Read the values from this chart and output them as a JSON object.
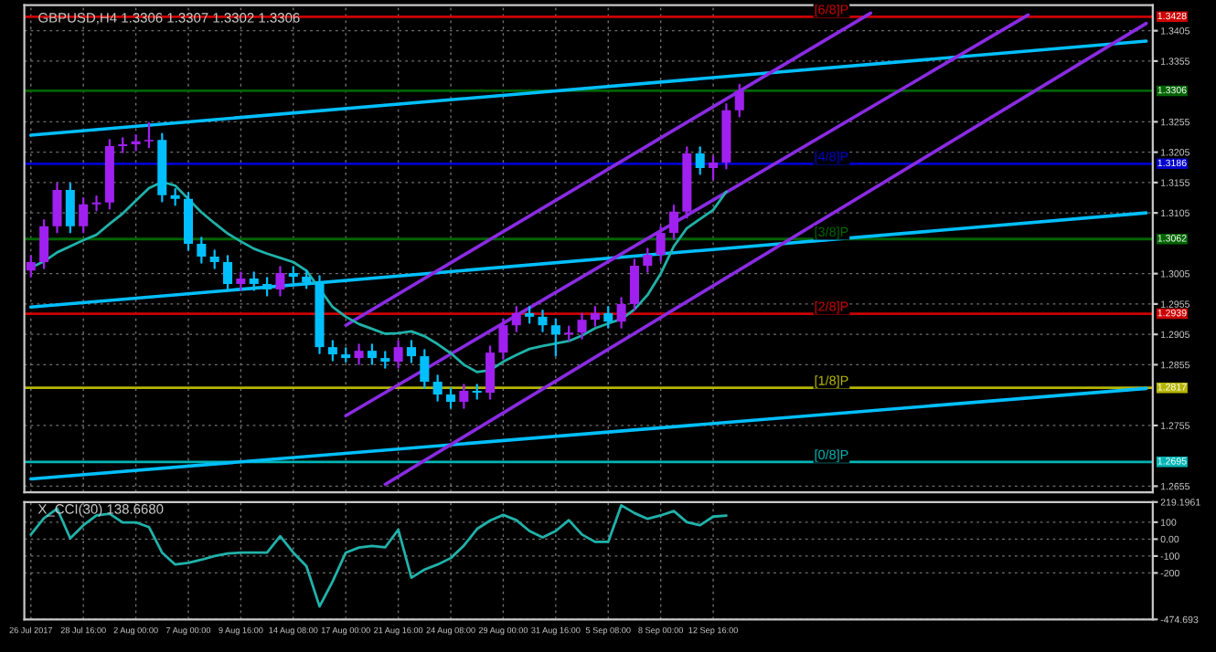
{
  "chart_data": [
    {
      "type": "candlestick",
      "title": "GBPUSD,H4 1.3306 1.3307 1.3302 1.3306",
      "categories": [
        null,
        null,
        null,
        null,
        null,
        null,
        null,
        null,
        null,
        null,
        null,
        null,
        null,
        null,
        null,
        null,
        null,
        null,
        null,
        null,
        null,
        null,
        null,
        null,
        null,
        null,
        null,
        null,
        null,
        null,
        null,
        null,
        null,
        null,
        null,
        null,
        null,
        null,
        null,
        null,
        null,
        null,
        null,
        null,
        null,
        null,
        null,
        null,
        null,
        null,
        null,
        null,
        null,
        null,
        null,
        null,
        null,
        null,
        null,
        null,
        null,
        null,
        null,
        null,
        null,
        null,
        null,
        null,
        null,
        null,
        null,
        null,
        null,
        null,
        null,
        null,
        null,
        null,
        null,
        null,
        null,
        null,
        null,
        null,
        null,
        null
      ],
      "ohlc": [
        [
          1.301,
          1.3034,
          1.3,
          1.3024
        ],
        [
          1.3024,
          1.3093,
          1.3014,
          1.3083
        ],
        [
          1.3083,
          1.3153,
          1.3073,
          1.3143
        ],
        [
          1.3143,
          1.3153,
          1.3073,
          1.3083
        ],
        [
          1.3083,
          1.3129,
          1.3073,
          1.3119
        ],
        [
          1.3119,
          1.3132,
          1.3109,
          1.3122
        ],
        [
          1.3122,
          1.3225,
          1.3112,
          1.3215
        ],
        [
          1.3215,
          1.3228,
          1.3205,
          1.3218
        ],
        [
          1.3218,
          1.3233,
          1.3208,
          1.3223
        ],
        [
          1.3223,
          1.3253,
          1.3213,
          1.3225
        ],
        [
          1.3225,
          1.3235,
          1.3124,
          1.3134
        ],
        [
          1.3134,
          1.3144,
          1.3118,
          1.3128
        ],
        [
          1.3128,
          1.3138,
          1.3044,
          1.3054
        ],
        [
          1.3054,
          1.3064,
          1.3023,
          1.3033
        ],
        [
          1.3033,
          1.3043,
          1.3014,
          1.3024
        ],
        [
          1.3024,
          1.3034,
          1.2978,
          1.2988
        ],
        [
          1.2988,
          1.3007,
          1.2978,
          1.2997
        ],
        [
          1.2997,
          1.3007,
          1.2978,
          1.2988
        ],
        [
          1.2988,
          1.2998,
          1.2969,
          1.2979
        ],
        [
          1.2979,
          1.3016,
          1.2969,
          1.3006
        ],
        [
          1.3006,
          1.3016,
          1.299,
          1.3
        ],
        [
          1.3,
          1.301,
          1.2981,
          1.2991
        ],
        [
          1.2991,
          1.3001,
          1.2874,
          1.2884
        ],
        [
          1.2884,
          1.2894,
          1.2862,
          1.2872
        ],
        [
          1.2872,
          1.2882,
          1.286,
          1.2866
        ],
        [
          1.2866,
          1.2888,
          1.2856,
          1.2878
        ],
        [
          1.2878,
          1.2888,
          1.2856,
          1.2866
        ],
        [
          1.2866,
          1.2876,
          1.285,
          1.286
        ],
        [
          1.286,
          1.2894,
          1.285,
          1.2884
        ],
        [
          1.2884,
          1.2894,
          1.2859,
          1.2869
        ],
        [
          1.2869,
          1.2879,
          1.2817,
          1.2827
        ],
        [
          1.2827,
          1.2837,
          1.2796,
          1.2806
        ],
        [
          1.2806,
          1.2816,
          1.2784,
          1.2794
        ],
        [
          1.2794,
          1.2822,
          1.2784,
          1.2812
        ],
        [
          1.2812,
          1.2822,
          1.2799,
          1.2809
        ],
        [
          1.2809,
          1.2885,
          1.2799,
          1.2875
        ],
        [
          1.2875,
          1.293,
          1.2865,
          1.292
        ],
        [
          1.292,
          1.295,
          1.291,
          1.294
        ],
        [
          1.294,
          1.295,
          1.2924,
          1.2934
        ],
        [
          1.2934,
          1.2944,
          1.291,
          1.292
        ],
        [
          1.292,
          1.293,
          1.287,
          1.2905
        ],
        [
          1.2905,
          1.2918,
          1.2895,
          1.2908
        ],
        [
          1.2908,
          1.2939,
          1.2898,
          1.2929
        ],
        [
          1.2929,
          1.295,
          1.2919,
          1.294
        ],
        [
          1.294,
          1.295,
          1.2916,
          1.2926
        ],
        [
          1.2926,
          1.2965,
          1.2916,
          1.2955
        ],
        [
          1.2955,
          1.3028,
          1.2945,
          1.3018
        ],
        [
          1.3018,
          1.3046,
          1.3008,
          1.3036
        ],
        [
          1.3036,
          1.3082,
          1.3026,
          1.3072
        ],
        [
          1.3072,
          1.3117,
          1.3062,
          1.3107
        ],
        [
          1.3107,
          1.3213,
          1.3097,
          1.3203
        ],
        [
          1.3203,
          1.3213,
          1.3169,
          1.3179
        ],
        [
          1.3179,
          1.3198,
          1.316,
          1.3188
        ],
        [
          1.3188,
          1.3284,
          1.3178,
          1.3274
        ],
        [
          1.3274,
          1.3316,
          1.3264,
          1.3306
        ],
        null,
        null,
        null,
        null,
        null,
        null,
        null,
        null,
        null,
        null,
        null,
        null,
        null,
        null,
        null,
        null,
        null,
        null,
        null,
        null,
        null,
        null,
        null,
        null,
        null,
        null,
        null,
        null,
        null,
        null,
        null
      ],
      "colors": [
        "#a020f0",
        "#a020f0",
        "#a020f0",
        "#00bfff",
        "#a020f0",
        "#a020f0",
        "#a020f0",
        "#a020f0",
        "#a020f0",
        "#a020f0",
        "#00bfff",
        "#00bfff",
        "#00bfff",
        "#00bfff",
        "#00bfff",
        "#00bfff",
        "#a020f0",
        "#00bfff",
        "#00bfff",
        "#a020f0",
        "#00bfff",
        "#00bfff",
        "#00bfff",
        "#00bfff",
        "#00bfff",
        "#a020f0",
        "#00bfff",
        "#00bfff",
        "#a020f0",
        "#00bfff",
        "#00bfff",
        "#00bfff",
        "#00bfff",
        "#a020f0",
        "#00bfff",
        "#a020f0",
        "#a020f0",
        "#a020f0",
        "#00bfff",
        "#00bfff",
        "#00bfff",
        "#a020f0",
        "#a020f0",
        "#a020f0",
        "#00bfff",
        "#a020f0",
        "#a020f0",
        "#a020f0",
        "#a020f0",
        "#a020f0",
        "#a020f0",
        "#00bfff",
        "#a020f0",
        "#a020f0",
        "#a020f0",
        null,
        null,
        null,
        null,
        null,
        null,
        null,
        null,
        null,
        null,
        null,
        null,
        null,
        null,
        null,
        null,
        null,
        null,
        null,
        null,
        null,
        null,
        null,
        null,
        null,
        null,
        null,
        null,
        null,
        null,
        null
      ],
      "series": [
        {
          "type": "line",
          "color": "#00bfff",
          "values": [
            1.3233,
            null,
            null,
            null,
            null,
            null,
            null,
            null,
            null,
            null,
            null,
            null,
            null,
            null,
            null,
            null,
            null,
            null,
            null,
            null,
            null,
            null,
            null,
            null,
            null,
            null,
            null,
            null,
            null,
            null,
            null,
            null,
            null,
            null,
            null,
            null,
            null,
            null,
            null,
            null,
            null,
            null,
            null,
            null,
            null,
            null,
            null,
            null,
            null,
            null,
            null,
            null,
            null,
            null,
            null,
            null,
            null,
            null,
            null,
            null,
            null,
            null,
            null,
            null,
            null,
            null,
            null,
            null,
            null,
            null,
            null,
            null,
            null,
            null,
            null,
            null,
            null,
            null,
            null,
            null,
            null,
            null,
            null,
            null,
            null,
            1.3388
          ]
        },
        {
          "type": "line",
          "color": "#00bfff",
          "values": [
            1.295,
            null,
            null,
            null,
            null,
            null,
            null,
            null,
            null,
            null,
            null,
            null,
            null,
            null,
            null,
            null,
            null,
            null,
            null,
            null,
            null,
            null,
            null,
            null,
            null,
            null,
            null,
            null,
            null,
            null,
            null,
            null,
            null,
            null,
            null,
            null,
            null,
            null,
            null,
            null,
            null,
            null,
            null,
            null,
            null,
            null,
            null,
            null,
            null,
            null,
            null,
            null,
            null,
            null,
            null,
            null,
            null,
            null,
            null,
            null,
            null,
            null,
            null,
            null,
            null,
            null,
            null,
            null,
            null,
            null,
            null,
            null,
            null,
            null,
            null,
            null,
            null,
            null,
            null,
            null,
            null,
            null,
            null,
            null,
            null,
            1.3105
          ]
        },
        {
          "type": "line",
          "color": "#00bfff",
          "values": [
            1.2667,
            null,
            null,
            null,
            null,
            null,
            null,
            null,
            null,
            null,
            null,
            null,
            null,
            null,
            null,
            null,
            null,
            null,
            null,
            null,
            null,
            null,
            null,
            null,
            null,
            null,
            null,
            null,
            null,
            null,
            null,
            null,
            null,
            null,
            null,
            null,
            null,
            null,
            null,
            null,
            null,
            null,
            null,
            null,
            null,
            null,
            null,
            null,
            null,
            null,
            null,
            null,
            null,
            null,
            null,
            null,
            null,
            null,
            null,
            null,
            null,
            null,
            null,
            null,
            null,
            null,
            null,
            null,
            null,
            null,
            null,
            null,
            null,
            null,
            null,
            null,
            null,
            null,
            null,
            null,
            null,
            null,
            null,
            null,
            null,
            1.2816
          ]
        },
        {
          "type": "line",
          "color": "#8a2be2",
          "values": [
            null,
            null,
            null,
            null,
            null,
            null,
            null,
            null,
            null,
            null,
            null,
            null,
            null,
            null,
            null,
            null,
            null,
            null,
            null,
            null,
            null,
            null,
            null,
            null,
            1.292,
            null,
            null,
            null,
            null,
            null,
            null,
            null,
            null,
            null,
            null,
            null,
            null,
            null,
            null,
            null,
            null,
            null,
            null,
            null,
            null,
            null,
            null,
            null,
            null,
            null,
            null,
            null,
            null,
            null,
            null,
            null,
            null,
            null,
            null,
            null,
            null,
            null,
            null,
            null,
            1.3434,
            null,
            null,
            null,
            null,
            null,
            null,
            null,
            null,
            null,
            null,
            null,
            null,
            null,
            null,
            null,
            null,
            null,
            null,
            null,
            null,
            null
          ]
        },
        {
          "type": "line",
          "color": "#8a2be2",
          "values": [
            null,
            null,
            null,
            null,
            null,
            null,
            null,
            null,
            null,
            null,
            null,
            null,
            null,
            null,
            null,
            null,
            null,
            null,
            null,
            null,
            null,
            null,
            null,
            null,
            1.2771,
            null,
            null,
            null,
            null,
            null,
            null,
            null,
            null,
            null,
            null,
            null,
            null,
            null,
            null,
            null,
            null,
            null,
            null,
            null,
            null,
            null,
            null,
            null,
            null,
            null,
            null,
            null,
            null,
            null,
            null,
            null,
            null,
            null,
            null,
            null,
            null,
            null,
            null,
            null,
            null,
            null,
            null,
            null,
            null,
            null,
            null,
            null,
            null,
            null,
            null,
            null,
            1.3431,
            null,
            null,
            null,
            null,
            null,
            null,
            null,
            null,
            null
          ]
        },
        {
          "type": "line",
          "color": "#8a2be2",
          "values": [
            null,
            null,
            null,
            null,
            null,
            null,
            null,
            null,
            null,
            null,
            null,
            null,
            null,
            null,
            null,
            null,
            null,
            null,
            null,
            null,
            null,
            null,
            null,
            null,
            null,
            null,
            null,
            1.2658,
            null,
            null,
            null,
            null,
            null,
            null,
            null,
            null,
            null,
            null,
            null,
            null,
            null,
            null,
            null,
            null,
            null,
            null,
            null,
            null,
            null,
            null,
            null,
            null,
            null,
            null,
            null,
            null,
            null,
            null,
            null,
            null,
            null,
            null,
            null,
            null,
            null,
            null,
            null,
            null,
            null,
            null,
            null,
            null,
            null,
            null,
            null,
            null,
            null,
            null,
            null,
            null,
            null,
            null,
            null,
            null,
            null,
            1.3417
          ]
        },
        {
          "type": "line",
          "color": "#20b2aa",
          "values": [
            1.3015,
            1.3025,
            1.304,
            1.305,
            1.306,
            1.3069,
            1.3087,
            1.3104,
            1.3125,
            1.3146,
            1.3156,
            1.315,
            1.3128,
            1.3106,
            1.3088,
            1.3071,
            1.3058,
            1.3046,
            1.3038,
            1.3031,
            1.3024,
            1.301,
            1.298,
            1.295,
            1.2934,
            1.2922,
            1.2914,
            1.2906,
            1.2907,
            1.291,
            1.2902,
            1.2889,
            1.2874,
            1.2855,
            1.2843,
            1.2846,
            1.286,
            1.2871,
            1.2881,
            1.2886,
            1.289,
            1.2894,
            1.2903,
            1.2915,
            1.2923,
            1.293,
            1.2946,
            1.297,
            1.3005,
            1.305,
            1.308,
            1.3095,
            1.311,
            1.314,
            null,
            null,
            null,
            null,
            null,
            null,
            null,
            null,
            null,
            null,
            null,
            null,
            null,
            null,
            null,
            null,
            null,
            null,
            null,
            null,
            null,
            null,
            null,
            null,
            null,
            null,
            null,
            null,
            null,
            null,
            null,
            null
          ]
        }
      ],
      "ref_lines": [
        {
          "axis": "y",
          "value": 1.3428,
          "label": "[6/8]P",
          "color": "#cc0000"
        },
        {
          "axis": "y",
          "value": 1.3306,
          "label": null,
          "color": "#006400"
        },
        {
          "axis": "y",
          "value": 1.3186,
          "label": "[4/8]P",
          "color": "#0000cd"
        },
        {
          "axis": "y",
          "value": 1.3062,
          "label": "[3/8]P",
          "color": "#006400"
        },
        {
          "axis": "y",
          "value": 1.2939,
          "label": "[2/8]P",
          "color": "#cc0000"
        },
        {
          "axis": "y",
          "value": 1.2817,
          "label": "[1/8]P",
          "color": "#b5b500"
        },
        {
          "axis": "y",
          "value": 1.2695,
          "label": "[0/8]P",
          "color": "#00b5b5"
        }
      ],
      "ylim": [
        1.2645,
        1.3447
      ],
      "yticks": [
        1.3405,
        1.3355,
        1.3255,
        1.3205,
        1.3155,
        1.3105,
        1.3005,
        1.2955,
        1.2905,
        1.2855,
        1.2755,
        1.2655
      ],
      "annotations": [
        {
          "text": "1.3428",
          "y": 1.3428
        },
        {
          "text": "1.3306",
          "y": 1.3306
        },
        {
          "text": "1.3186",
          "y": 1.3186
        },
        {
          "text": "1.3062",
          "y": 1.3062
        },
        {
          "text": "1.2939",
          "y": 1.2939
        },
        {
          "text": "1.2817",
          "y": 1.2817
        },
        {
          "text": "1.2695",
          "y": 1.2695
        }
      ],
      "tick_labels": "y",
      "grid": true
    },
    {
      "type": "line",
      "title": "X_CCI(30) 138.6680",
      "categories": [
        "26 Jul 2017",
        null,
        null,
        null,
        "28 Jul 16:00",
        null,
        null,
        null,
        "2 Aug 00:00",
        null,
        null,
        null,
        "7 Aug 00:00",
        null,
        null,
        null,
        "9 Aug 16:00",
        null,
        null,
        null,
        "14 Aug 08:00",
        null,
        null,
        null,
        "17 Aug 00:00",
        null,
        null,
        null,
        "21 Aug 16:00",
        null,
        null,
        null,
        "24 Aug 08:00",
        null,
        null,
        null,
        "29 Aug 00:00",
        null,
        null,
        null,
        "31 Aug 16:00",
        null,
        null,
        null,
        "5 Sep 08:00",
        null,
        null,
        null,
        "8 Sep 00:00",
        null,
        null,
        null,
        "12 Sep 16:00",
        null,
        null,
        null,
        null,
        null,
        null,
        null,
        null,
        null,
        null,
        null,
        null,
        null,
        null,
        null,
        null,
        null,
        null,
        null,
        null,
        null,
        null,
        null,
        null,
        null,
        null,
        null,
        null,
        null,
        null,
        null,
        null,
        null
      ],
      "series": [
        {
          "color": "#20b2aa",
          "values": [
            27,
            124,
            180,
            5,
            82,
            140,
            150,
            99,
            99,
            71,
            -80,
            -150,
            -140,
            -122,
            -100,
            -85,
            -80,
            -80,
            -80,
            17,
            -80,
            -160,
            -398,
            -250,
            -80,
            -50,
            -40,
            -49,
            56,
            -228,
            -180,
            -150,
            -112,
            -38,
            60,
            110,
            143,
            112,
            48,
            10,
            48,
            112,
            27,
            -16,
            -16,
            200,
            154,
            120,
            140,
            166,
            100,
            82,
            133,
            138.668,
            null,
            null,
            null,
            null,
            null,
            null,
            null,
            null,
            null,
            null,
            null,
            null,
            null,
            null,
            null,
            null,
            null,
            null,
            null,
            null,
            null,
            null,
            null,
            null,
            null,
            null,
            null,
            null,
            null,
            null,
            null,
            null
          ]
        }
      ],
      "ylim": [
        -474.693,
        219.1961
      ],
      "yticks": [
        {
          "value": 219.1961,
          "label": "219.1961"
        },
        100,
        {
          "value": 0,
          "label": "0.00"
        },
        -100,
        -200,
        {
          "value": -474.693,
          "label": "-474.693"
        }
      ],
      "grid": true
    }
  ]
}
